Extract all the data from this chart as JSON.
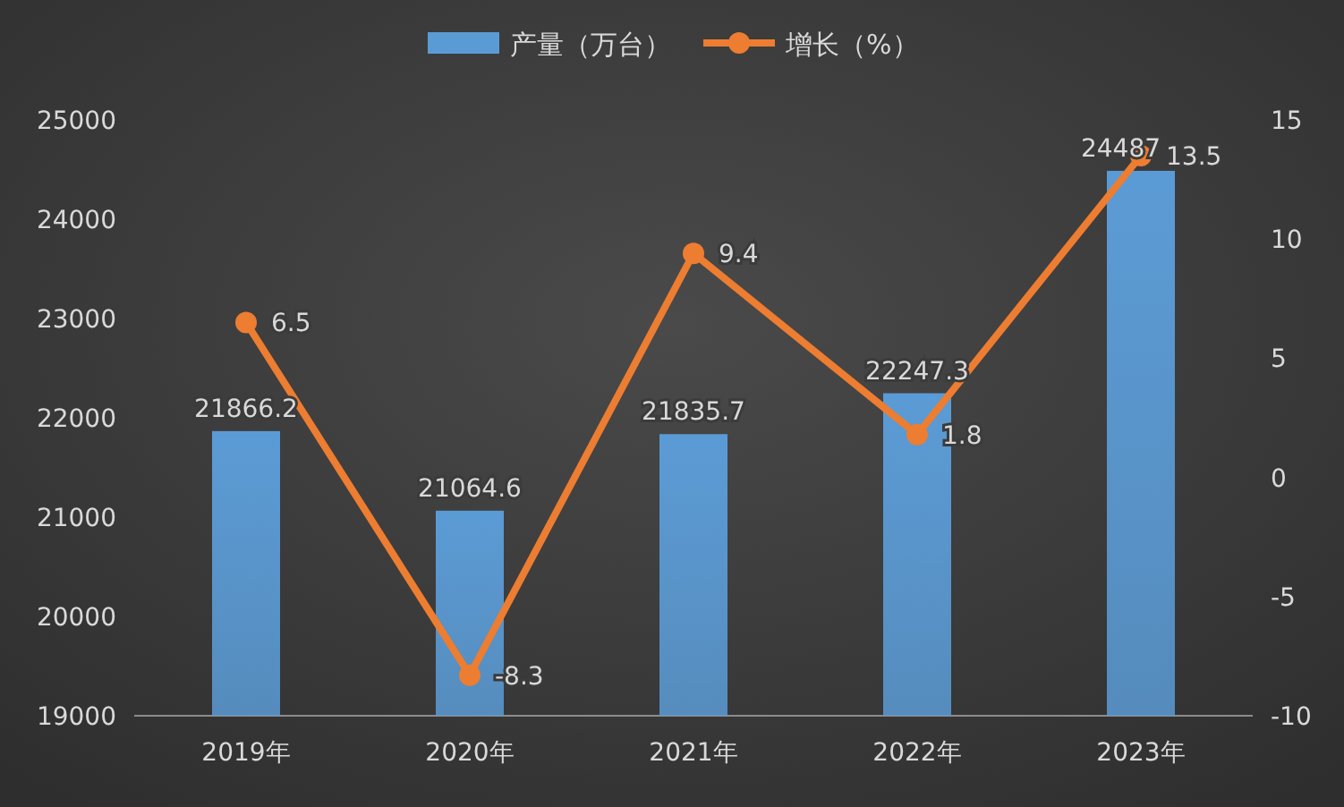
{
  "chart_data": {
    "type": "bar",
    "categories": [
      "2019年",
      "2020年",
      "2021年",
      "2022年",
      "2023年"
    ],
    "series": [
      {
        "name": "产量（万台）",
        "color": "#5b9bd5",
        "values": [
          21866.2,
          21064.6,
          21835.7,
          22247.3,
          24487
        ]
      },
      {
        "name": "增长（%）",
        "type": "line",
        "axis": "y2",
        "color": "#ed7d31",
        "values": [
          6.5,
          -8.3,
          9.4,
          1.8,
          13.5
        ]
      }
    ],
    "ylim": [
      19000,
      25000
    ],
    "yticks": [
      19000,
      20000,
      21000,
      22000,
      23000,
      24000,
      25000
    ],
    "y2lim": [
      -10,
      15
    ],
    "y2ticks": [
      -10,
      -5,
      0,
      5,
      10,
      15
    ],
    "marker": "circle",
    "data_labels": true,
    "legend": "top",
    "grid": false
  }
}
